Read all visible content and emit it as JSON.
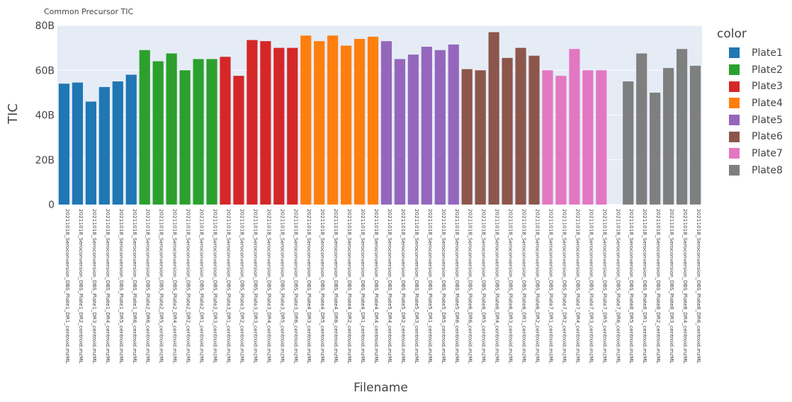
{
  "chart_data": {
    "type": "bar",
    "title": "Common Precursor TIC",
    "xlabel": "Filename",
    "ylabel": "TIC",
    "ylim": [
      0,
      80
    ],
    "yticks": [
      0,
      20,
      40,
      60,
      80
    ],
    "ytick_labels": [
      "0",
      "20B",
      "40B",
      "60B",
      "80B"
    ],
    "grid": true,
    "legend": {
      "title": "color",
      "placement": "right"
    },
    "series": [
      {
        "name": "Plate1",
        "color": "#1f77b4",
        "categories": [
          "20211018_Seroconversion_DBS_Plate1_DR1_centroid.mzML",
          "20211018_Seroconversion_DBS_Plate1_DR2_centroid.mzML",
          "20211018_Seroconversion_DBS_Plate1_DR3_centroid.mzML",
          "20211018_Seroconversion_DBS_Plate1_DR4_centroid.mzML",
          "20211018_Seroconversion_DBS_Plate1_DR5_centroid.mzML",
          "20211018_Seroconversion_DBS_Plate1_DR6_centroid.mzML"
        ],
        "values": [
          54,
          54.5,
          46,
          52.5,
          55,
          58
        ]
      },
      {
        "name": "Plate2",
        "color": "#2ca02c",
        "categories": [
          "20211018_Seroconversion_DBS_Plate2_DR6_centroid.mzML",
          "20211018_Seroconversion_DBS_Plate2_DR5_centroid.mzML",
          "20211018_Seroconversion_DBS_Plate2_DR4_centroid.mzML",
          "20211018_Seroconversion_DBS_Plate2_DR2_centroid.mzML",
          "20211018_Seroconversion_DBS_Plate2_DR1_centroid.mzML",
          "20211018_Seroconversion_DBS_Plate2_DR3_centroid.mzML"
        ],
        "values": [
          69,
          64,
          67.5,
          60,
          65,
          65
        ]
      },
      {
        "name": "Plate3",
        "color": "#d62728",
        "categories": [
          "20211018_Seroconversion_DBS_Plate3_DR1_centroid.mzML",
          "20211018_Seroconversion_DBS_Plate3_DR2_centroid.mzML",
          "20211018_Seroconversion_DBS_Plate3_DR3_centroid.mzML",
          "20211018_Seroconversion_DBS_Plate3_DR4_centroid.mzML",
          "20211018_Seroconversion_DBS_Plate3_DR5_centroid.mzML",
          "20211018_Seroconversion_DBS_Plate3_DR6_centroid.mzML"
        ],
        "values": [
          66,
          57.5,
          73.5,
          73,
          70,
          70
        ]
      },
      {
        "name": "Plate4",
        "color": "#ff7f0e",
        "categories": [
          "20211018_Seroconversion_DBS_Plate4_DR3_centroid.mzML",
          "20211018_Seroconversion_DBS_Plate4_DR5_centroid.mzML",
          "20211018_Seroconversion_DBS_Plate4_DR6_centroid.mzML",
          "20211018_Seroconversion_DBS_Plate4_DR2_centroid.mzML",
          "20211018_Seroconversion_DBS_Plate4_DR1_centroid.mzML",
          "20211018_Seroconversion_DBS_Plate4_DR4_centroid.mzML"
        ],
        "values": [
          75.5,
          73,
          75.5,
          71,
          74,
          75
        ]
      },
      {
        "name": "Plate5",
        "color": "#9467bd",
        "categories": [
          "20211018_Seroconversion_DBS_Plate5_DR4_centroid.mzML",
          "20211018_Seroconversion_DBS_Plate5_DR2_centroid.mzML",
          "20211018_Seroconversion_DBS_Plate5_DR3_centroid.mzML",
          "20211018_Seroconversion_DBS_Plate5_DR1_centroid.mzML",
          "20211018_Seroconversion_DBS_Plate5_DR5_centroid.mzML",
          "20211018_Seroconversion_DBS_Plate5_DR6_centroid.mzML"
        ],
        "values": [
          73,
          65,
          67,
          70.5,
          69,
          71.5
        ]
      },
      {
        "name": "Plate6",
        "color": "#8c564b",
        "categories": [
          "20211018_Seroconversion_DBS_Plate6_DR6_centroid.mzML",
          "20211018_Seroconversion_DBS_Plate6_DR5_centroid.mzML",
          "20211018_Seroconversion_DBS_Plate6_DR4_centroid.mzML",
          "20211018_Seroconversion_DBS_Plate6_DR3_centroid.mzML",
          "20211018_Seroconversion_DBS_Plate6_DR1_centroid.mzML",
          "20211018_Seroconversion_DBS_Plate6_DR2_centroid.mzML"
        ],
        "values": [
          60.5,
          60,
          77,
          65.5,
          70,
          66.5
        ]
      },
      {
        "name": "Plate7",
        "color": "#e377c2",
        "categories": [
          "20211018_Seroconversion_DBS_Plate7_DR1_centroid.mzML",
          "20211018_Seroconversion_DBS_Plate7_DR2_centroid.mzML",
          "20211018_Seroconversion_DBS_Plate7_DR4_centroid.mzML",
          "20211018_Seroconversion_DBS_Plate7_DR3_centroid.mzML",
          "20211018_Seroconversion_DBS_Plate7_DR5_centroid.mzML",
          "20211018_Seroconversion_DBS_Plate7_DR6_centroid.mzML"
        ],
        "values": [
          60,
          57.5,
          69.5,
          60,
          60,
          null
        ]
      },
      {
        "name": "Plate8",
        "color": "#7f7f7f",
        "categories": [
          "20211018_Seroconversion_DBS_Plate8_DR5_centroid.mzML",
          "20211018_Seroconversion_DBS_Plate8_DR1_centroid.mzML",
          "20211018_Seroconversion_DBS_Plate8_DR2_centroid.mzML",
          "20211018_Seroconversion_DBS_Plate8_DR3_centroid.mzML",
          "20211018_Seroconversion_DBS_Plate8_DR4_centroid.mzML",
          "20211018_Seroconversion_DBS_Plate8_DR6_centroid.mzML"
        ],
        "values": [
          55,
          67.5,
          50,
          61,
          69.5,
          62
        ]
      }
    ]
  }
}
